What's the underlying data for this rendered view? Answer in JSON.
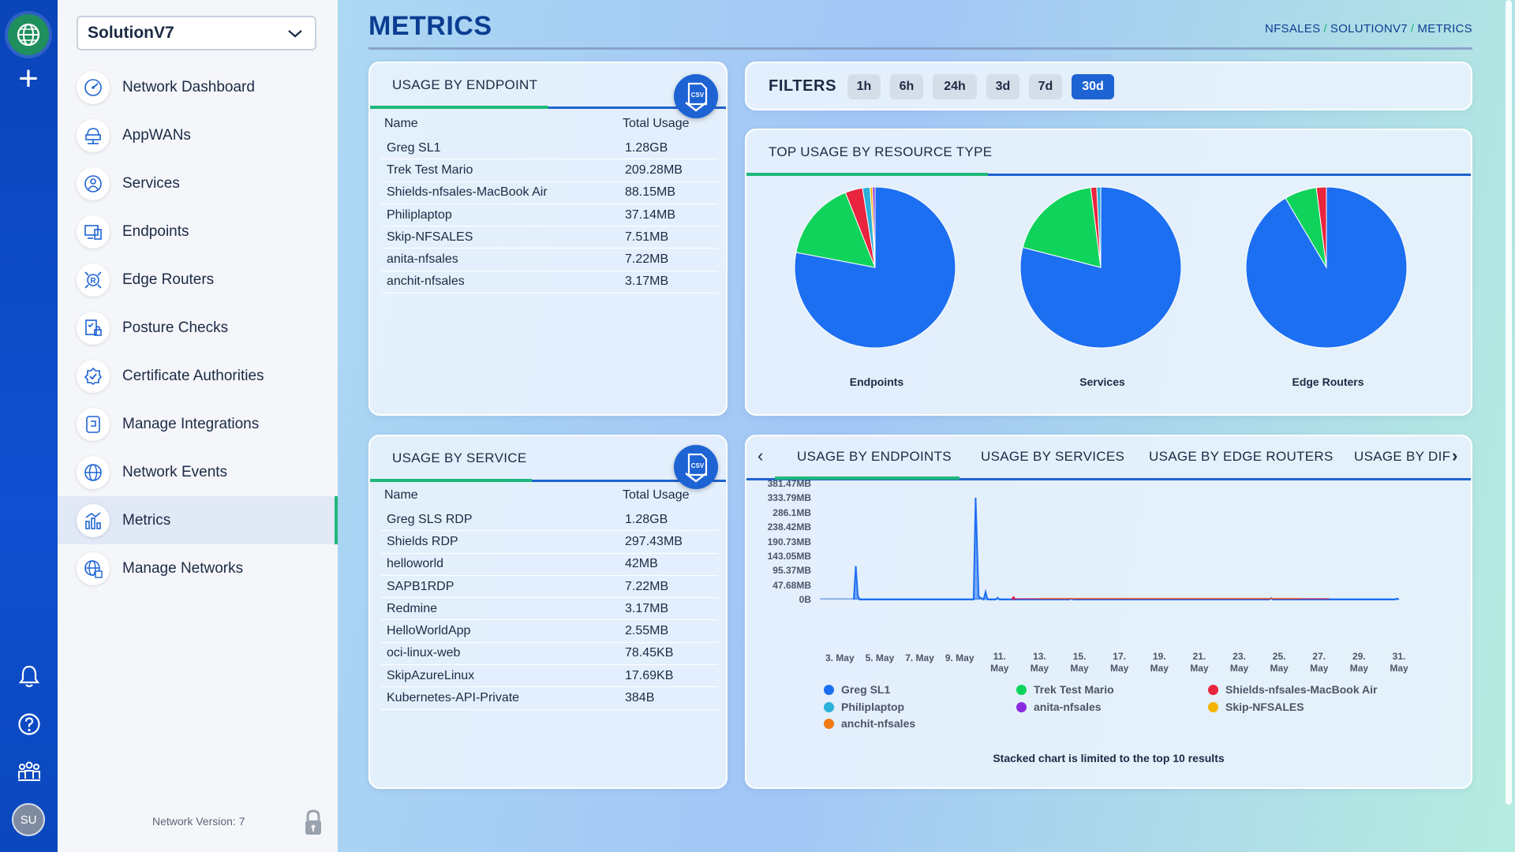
{
  "network": {
    "selected": "SolutionV7"
  },
  "nav": [
    {
      "label": "Network Dashboard",
      "icon": "dashboard-gauge-icon"
    },
    {
      "label": "AppWANs",
      "icon": "appwan-icon"
    },
    {
      "label": "Services",
      "icon": "services-icon"
    },
    {
      "label": "Endpoints",
      "icon": "endpoints-icon"
    },
    {
      "label": "Edge Routers",
      "icon": "edge-router-icon"
    },
    {
      "label": "Posture Checks",
      "icon": "posture-check-icon"
    },
    {
      "label": "Certificate Authorities",
      "icon": "certificate-icon"
    },
    {
      "label": "Manage Integrations",
      "icon": "integrations-icon"
    },
    {
      "label": "Network Events",
      "icon": "network-events-icon"
    },
    {
      "label": "Metrics",
      "icon": "metrics-icon"
    },
    {
      "label": "Manage Networks",
      "icon": "manage-networks-icon"
    }
  ],
  "active_nav": "Metrics",
  "footer": {
    "version": "Network Version: 7",
    "avatar": "SU"
  },
  "page": {
    "title": "METRICS",
    "breadcrumb": [
      "NFSALES",
      "SOLUTIONV7",
      "METRICS"
    ]
  },
  "usage_by_endpoint": {
    "title": "USAGE BY ENDPOINT",
    "col_name": "Name",
    "col_usage": "Total Usage",
    "rows": [
      {
        "name": "Greg SL1",
        "usage": "1.28GB"
      },
      {
        "name": "Trek Test Mario",
        "usage": "209.28MB"
      },
      {
        "name": "Shields-nfsales-MacBook Air",
        "usage": "88.15MB"
      },
      {
        "name": "Philiplaptop",
        "usage": "37.14MB"
      },
      {
        "name": "Skip-NFSALES",
        "usage": "7.51MB"
      },
      {
        "name": "anita-nfsales",
        "usage": "7.22MB"
      },
      {
        "name": "anchit-nfsales",
        "usage": "3.17MB"
      }
    ]
  },
  "usage_by_service": {
    "title": "USAGE BY SERVICE",
    "col_name": "Name",
    "col_usage": "Total Usage",
    "rows": [
      {
        "name": "Greg SLS RDP",
        "usage": "1.28GB"
      },
      {
        "name": "Shields RDP",
        "usage": "297.43MB"
      },
      {
        "name": "helloworld",
        "usage": "42MB"
      },
      {
        "name": "SAPB1RDP",
        "usage": "7.22MB"
      },
      {
        "name": "Redmine",
        "usage": "3.17MB"
      },
      {
        "name": "HelloWorldApp",
        "usage": "2.55MB"
      },
      {
        "name": "oci-linux-web",
        "usage": "78.45KB"
      },
      {
        "name": "SkipAzureLinux",
        "usage": "17.69KB"
      },
      {
        "name": "Kubernetes-API-Private",
        "usage": "384B"
      }
    ]
  },
  "filters": {
    "title": "FILTERS",
    "options": [
      "1h",
      "6h",
      "24h",
      "3d",
      "7d",
      "30d"
    ],
    "selected": "30d"
  },
  "top_usage": {
    "title": "TOP USAGE BY RESOURCE TYPE"
  },
  "tabs": {
    "items": [
      "USAGE BY ENDPOINTS",
      "USAGE BY SERVICES",
      "USAGE BY EDGE ROUTERS",
      "USAGE BY DIF"
    ],
    "active": "USAGE BY ENDPOINTS",
    "note": "Stacked chart is limited to the top 10 results"
  },
  "colors": {
    "primary": "#1d63d4",
    "green": "#1fb77a",
    "red": "#e8243f"
  },
  "chart_data": [
    {
      "type": "pie",
      "title": "Endpoints",
      "slices": [
        {
          "label": "Greg SL1",
          "value": 78,
          "color": "#1d6ff2"
        },
        {
          "label": "Trek Test Mario",
          "value": 16,
          "color": "#10d35c"
        },
        {
          "label": "Shields-nfsales-MacBook Air",
          "value": 3.5,
          "color": "#e8243f"
        },
        {
          "label": "Philiplaptop",
          "value": 1.5,
          "color": "#2bb0d8"
        },
        {
          "label": "Skip-NFSALES",
          "value": 0.5,
          "color": "#f5b400"
        },
        {
          "label": "anita-nfsales",
          "value": 0.5,
          "color": "#8a2be2"
        }
      ]
    },
    {
      "type": "pie",
      "title": "Services",
      "slices": [
        {
          "label": "Greg SLS RDP",
          "value": 79,
          "color": "#1d6ff2"
        },
        {
          "label": "Shields RDP",
          "value": 19,
          "color": "#10d35c"
        },
        {
          "label": "helloworld",
          "value": 1.2,
          "color": "#e8243f"
        },
        {
          "label": "SAPB1RDP",
          "value": 0.8,
          "color": "#2bb0d8"
        }
      ]
    },
    {
      "type": "pie",
      "title": "Edge Routers",
      "slices": [
        {
          "value": 91.5,
          "color": "#1d6ff2"
        },
        {
          "value": 6.5,
          "color": "#10d35c"
        },
        {
          "value": 2,
          "color": "#e8243f"
        }
      ]
    },
    {
      "type": "area",
      "title": "USAGE BY ENDPOINTS",
      "y_ticks": [
        "0B",
        "47.68MB",
        "95.37MB",
        "143.05MB",
        "190.73MB",
        "238.42MB",
        "286.1MB",
        "333.79MB",
        "381.47MB"
      ],
      "ylim_mb": [
        0,
        381.47
      ],
      "x_ticks": [
        "3. May",
        "5. May",
        "7. May",
        "9. May",
        "11. May",
        "13. May",
        "15. May",
        "17. May",
        "19. May",
        "21. May",
        "23. May",
        "25. May",
        "27. May",
        "29. May",
        "31. May"
      ],
      "xlim_day": [
        2,
        31
      ],
      "series": [
        {
          "name": "Greg SL1",
          "color": "#1d6ff2",
          "points": [
            [
              3.7,
              0
            ],
            [
              3.8,
              110
            ],
            [
              3.9,
              12
            ],
            [
              4.0,
              0
            ],
            [
              9.7,
              0
            ],
            [
              9.8,
              335
            ],
            [
              9.95,
              10
            ],
            [
              10.2,
              0
            ],
            [
              10.3,
              25
            ],
            [
              10.4,
              0
            ],
            [
              10.8,
              0
            ],
            [
              10.9,
              6
            ],
            [
              11.0,
              0
            ],
            [
              14.5,
              0
            ],
            [
              14.6,
              3
            ],
            [
              14.7,
              0
            ],
            [
              24.5,
              0
            ],
            [
              24.6,
              5
            ],
            [
              24.7,
              0
            ],
            [
              30.8,
              0
            ],
            [
              30.9,
              3
            ],
            [
              31.0,
              0
            ]
          ]
        },
        {
          "name": "Trek Test Mario",
          "color": "#10d35c",
          "points": []
        },
        {
          "name": "Shields-nfsales-MacBook Air",
          "color": "#e8243f",
          "points": [
            [
              11.6,
              0
            ],
            [
              11.7,
              8
            ],
            [
              11.8,
              0
            ]
          ]
        },
        {
          "name": "Philiplaptop",
          "color": "#2bb0d8",
          "points": []
        },
        {
          "name": "anita-nfsales",
          "color": "#8a2be2",
          "points": []
        },
        {
          "name": "Skip-NFSALES",
          "color": "#f5b400",
          "points": []
        },
        {
          "name": "anchit-nfsales",
          "color": "#f07b14",
          "points": []
        }
      ]
    }
  ]
}
